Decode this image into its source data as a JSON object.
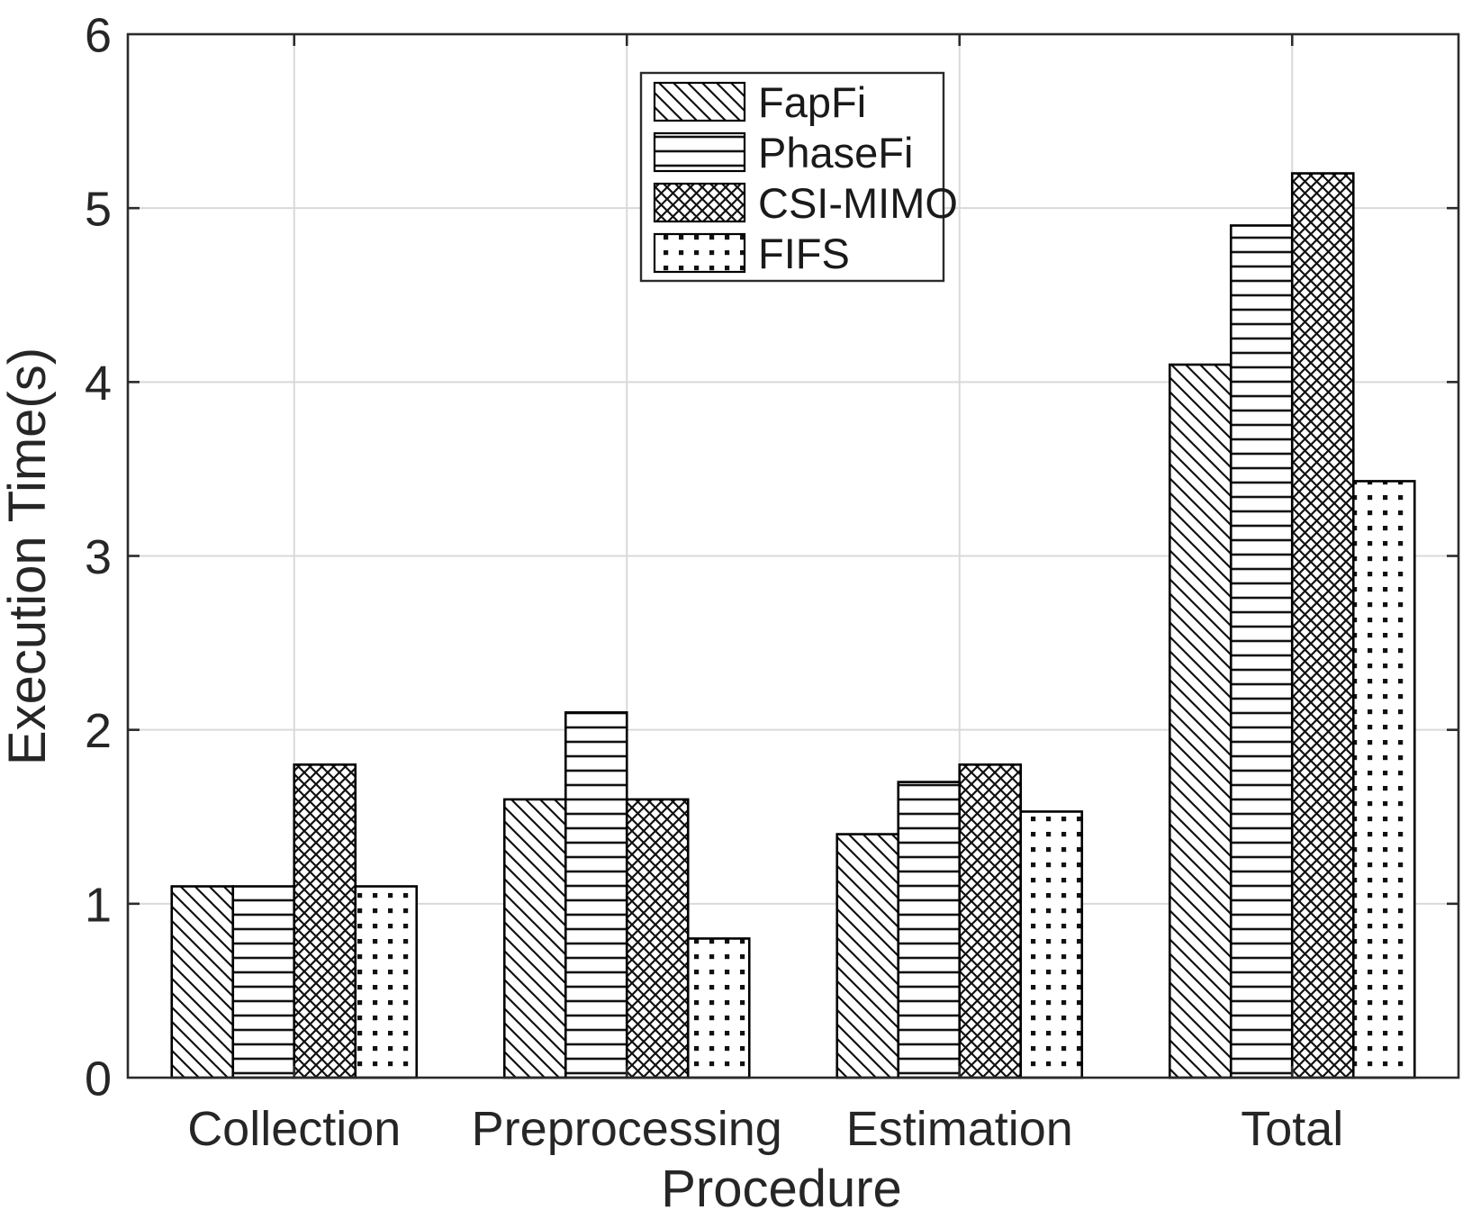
{
  "chart_data": {
    "type": "bar",
    "title": "",
    "xlabel": "Procedure",
    "ylabel": "Execution Time(s)",
    "categories": [
      "Collection",
      "Preprocessing",
      "Estimation",
      "Total"
    ],
    "series": [
      {
        "name": "FapFi",
        "hatch": "diagonal",
        "values": [
          1.1,
          1.6,
          1.4,
          4.1
        ]
      },
      {
        "name": "PhaseFi",
        "hatch": "horizontal",
        "values": [
          1.1,
          2.1,
          1.7,
          4.9
        ]
      },
      {
        "name": "CSI-MIMO",
        "hatch": "crosshatch",
        "values": [
          1.8,
          1.6,
          1.8,
          5.2
        ]
      },
      {
        "name": "FIFS",
        "hatch": "dots",
        "values": [
          1.1,
          0.8,
          1.53,
          3.43
        ]
      }
    ],
    "ylim": [
      0,
      6
    ],
    "yticks": [
      0,
      1,
      2,
      3,
      4,
      5,
      6
    ],
    "grid": true,
    "legend": {
      "position": "top-center",
      "entries": [
        "FapFi",
        "PhaseFi",
        "CSI-MIMO",
        "FIFS"
      ]
    },
    "colors": {
      "background": "#ffffff",
      "bar_fill": "#ffffff",
      "bar_edge": "#000000",
      "hatch": "#111111",
      "grid": "#d9d9d9",
      "axis": "#2b2b2b",
      "text": "#262626"
    }
  }
}
